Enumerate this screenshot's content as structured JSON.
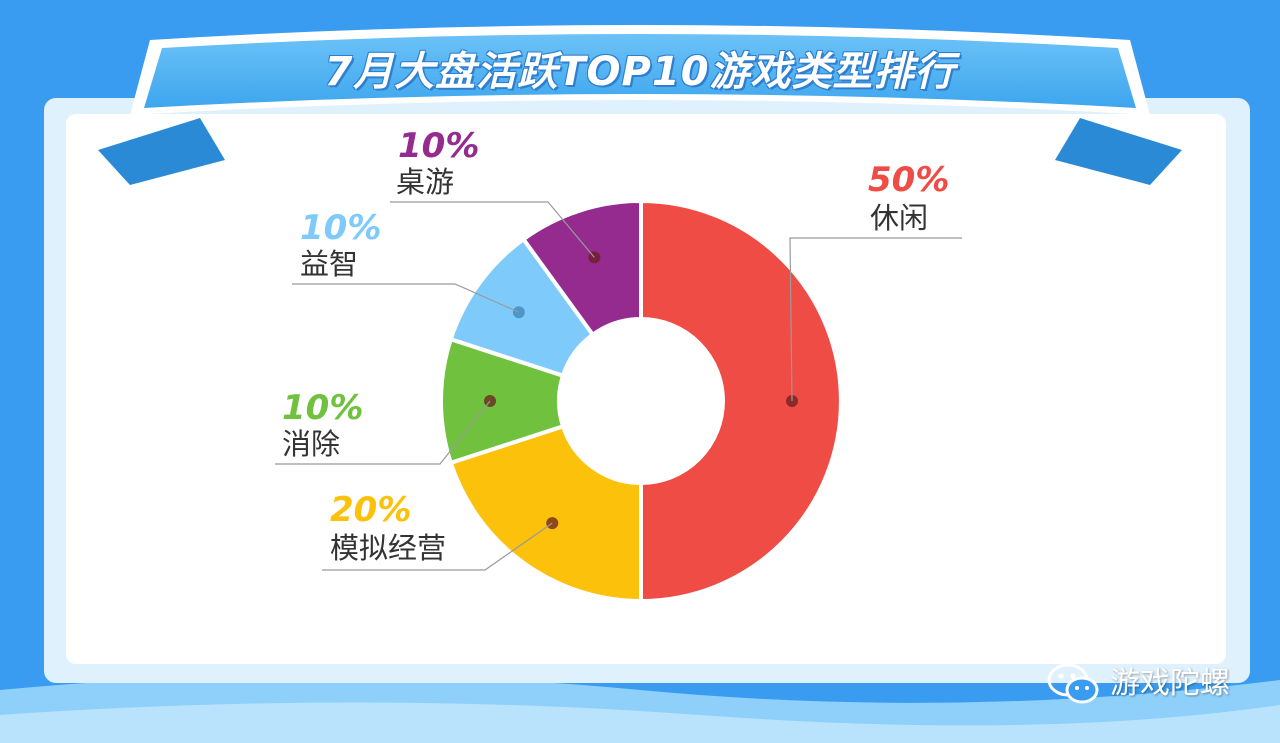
{
  "header": {
    "title": "7月大盘活跃TOP10游戏类型排行"
  },
  "chart_data": {
    "type": "pie",
    "variant": "donut",
    "title": "7月大盘活跃TOP10游戏类型排行",
    "unit": "%",
    "slices": [
      {
        "label": "休闲",
        "value": 50,
        "value_label": "50%",
        "color": "#ef4c45"
      },
      {
        "label": "模拟经营",
        "value": 20,
        "value_label": "20%",
        "color": "#fbc10b"
      },
      {
        "label": "消除",
        "value": 10,
        "value_label": "10%",
        "color": "#70c23e"
      },
      {
        "label": "益智",
        "value": 10,
        "value_label": "10%",
        "color": "#7ecbfb"
      },
      {
        "label": "桌游",
        "value": 10,
        "value_label": "10%",
        "color": "#952b8e"
      }
    ]
  },
  "watermark": {
    "icon": "wechat-icon",
    "text": "游戏陀螺"
  },
  "colors": {
    "background": "#3a9cf0",
    "panel": "#ffffff",
    "banner": "#5bb6f4"
  }
}
